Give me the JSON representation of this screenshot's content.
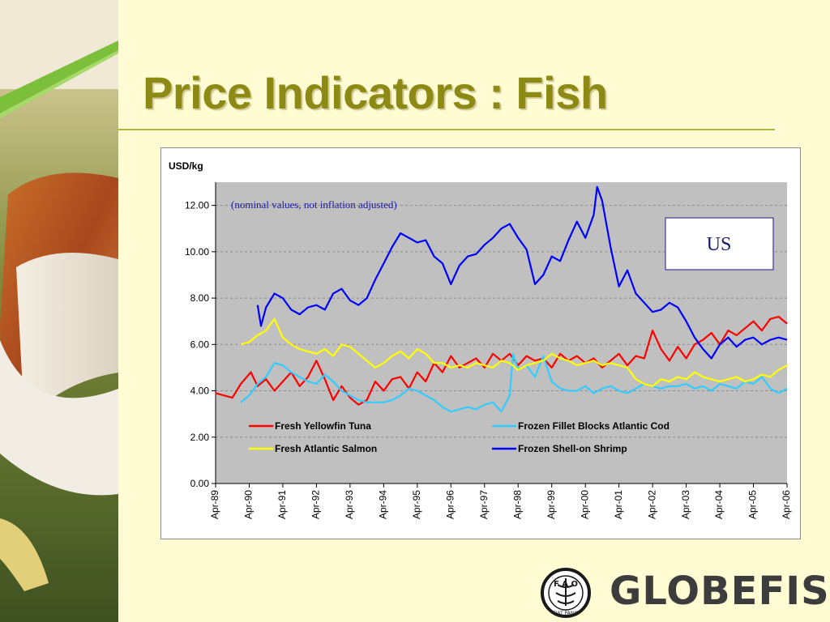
{
  "slide": {
    "title": "Price Indicators : Fish"
  },
  "chart_data": {
    "type": "line",
    "ylabel": "USD/kg",
    "ylim": [
      0,
      13
    ],
    "yticks": [
      0,
      2,
      4,
      6,
      8,
      10,
      12
    ],
    "ytick_labels": [
      "0.00",
      "2.00",
      "4.00",
      "6.00",
      "8.00",
      "10.00",
      "12.00"
    ],
    "x_tick_labels": [
      "Apr-89",
      "Apr-90",
      "Apr-91",
      "Apr-92",
      "Apr-93",
      "Apr-94",
      "Apr-95",
      "Apr-96",
      "Apr-97",
      "Apr-98",
      "Apr-99",
      "Apr-00",
      "Apr-01",
      "Apr-02",
      "Apr-03",
      "Apr-04",
      "Apr-05",
      "Apr-06"
    ],
    "note": "(nominal values, not inflation adjusted)",
    "region_label": "US",
    "grid": true,
    "legend_position": "bottom-inside",
    "series": [
      {
        "name": "Fresh Yellowfin Tuna",
        "color": "#ff0000",
        "x": [
          1989.25,
          1989.75,
          1990.0,
          1990.3,
          1990.5,
          1990.75,
          1991.0,
          1991.25,
          1991.5,
          1991.75,
          1992.0,
          1992.25,
          1992.5,
          1992.75,
          1993.0,
          1993.25,
          1993.5,
          1993.75,
          1994.0,
          1994.25,
          1994.5,
          1994.75,
          1995.0,
          1995.25,
          1995.5,
          1995.75,
          1996.0,
          1996.25,
          1996.5,
          1996.75,
          1997.0,
          1997.25,
          1997.5,
          1997.75,
          1998.0,
          1998.25,
          1998.5,
          1998.75,
          1999.0,
          1999.25,
          1999.5,
          1999.75,
          2000.0,
          2000.25,
          2000.5,
          2000.75,
          2001.0,
          2001.25,
          2001.5,
          2001.75,
          2002.0,
          2002.25,
          2002.5,
          2002.75,
          2003.0,
          2003.25,
          2003.5,
          2003.75,
          2004.0,
          2004.25,
          2004.5,
          2004.75,
          2005.0,
          2005.25,
          2005.5,
          2005.75,
          2006.0,
          2006.25
        ],
        "y": [
          3.9,
          3.7,
          4.3,
          4.8,
          4.2,
          4.5,
          4.0,
          4.4,
          4.8,
          4.2,
          4.6,
          5.3,
          4.5,
          3.6,
          4.2,
          3.7,
          3.4,
          3.6,
          4.4,
          4.0,
          4.5,
          4.6,
          4.1,
          4.8,
          4.4,
          5.2,
          4.8,
          5.5,
          5.0,
          5.2,
          5.4,
          5.0,
          5.6,
          5.3,
          5.6,
          5.1,
          5.5,
          5.3,
          5.4,
          5.0,
          5.6,
          5.3,
          5.5,
          5.2,
          5.4,
          5.0,
          5.3,
          5.6,
          5.1,
          5.5,
          5.4,
          6.6,
          5.8,
          5.3,
          5.9,
          5.4,
          6.0,
          6.2,
          6.5,
          6.0,
          6.6,
          6.4,
          6.7,
          7.0,
          6.6,
          7.1,
          7.2,
          6.9
        ]
      },
      {
        "name": "Frozen Fillet Blocks Atlantic Cod",
        "color": "#33ccff",
        "x": [
          1990.0,
          1990.25,
          1990.5,
          1990.75,
          1991.0,
          1991.25,
          1991.5,
          1991.75,
          1992.0,
          1992.25,
          1992.5,
          1992.75,
          1993.0,
          1993.25,
          1993.5,
          1993.75,
          1994.0,
          1994.25,
          1994.5,
          1994.75,
          1995.0,
          1995.25,
          1995.5,
          1995.75,
          1996.0,
          1996.25,
          1996.5,
          1996.75,
          1997.0,
          1997.25,
          1997.5,
          1997.75,
          1998.0,
          1998.1,
          1998.25,
          1998.5,
          1998.75,
          1999.0,
          1999.25,
          1999.5,
          1999.75,
          2000.0,
          2000.25,
          2000.5,
          2000.75,
          2001.0,
          2001.25,
          2001.5,
          2001.75,
          2002.0,
          2002.25,
          2002.5,
          2002.75,
          2003.0,
          2003.25,
          2003.5,
          2003.75,
          2004.0,
          2004.25,
          2004.5,
          2004.75,
          2005.0,
          2005.25,
          2005.5,
          2005.75,
          2006.0,
          2006.25
        ],
        "y": [
          3.5,
          3.8,
          4.3,
          4.6,
          5.2,
          5.1,
          4.8,
          4.6,
          4.4,
          4.3,
          4.7,
          4.4,
          4.0,
          3.8,
          3.6,
          3.5,
          3.5,
          3.5,
          3.6,
          3.8,
          4.1,
          4.0,
          3.8,
          3.6,
          3.3,
          3.1,
          3.2,
          3.3,
          3.2,
          3.4,
          3.5,
          3.1,
          3.8,
          5.6,
          4.9,
          5.1,
          4.6,
          5.5,
          4.4,
          4.1,
          4.0,
          4.0,
          4.2,
          3.9,
          4.1,
          4.2,
          4.0,
          3.9,
          4.1,
          4.3,
          4.2,
          4.1,
          4.2,
          4.2,
          4.3,
          4.1,
          4.2,
          4.0,
          4.3,
          4.2,
          4.1,
          4.4,
          4.3,
          4.6,
          4.1,
          3.9,
          4.1
        ]
      },
      {
        "name": "Fresh Atlantic Salmon",
        "color": "#ffff00",
        "x": [
          1990.0,
          1990.25,
          1990.5,
          1990.75,
          1991.0,
          1991.25,
          1991.5,
          1991.75,
          1992.0,
          1992.25,
          1992.5,
          1992.75,
          1993.0,
          1993.25,
          1993.5,
          1993.75,
          1994.0,
          1994.25,
          1994.5,
          1994.75,
          1995.0,
          1995.25,
          1995.5,
          1995.75,
          1996.0,
          1996.25,
          1996.5,
          1996.75,
          1997.0,
          1997.25,
          1997.5,
          1997.75,
          1998.0,
          1998.25,
          1998.5,
          1998.75,
          1999.0,
          1999.25,
          1999.5,
          1999.75,
          2000.0,
          2000.25,
          2000.5,
          2000.75,
          2001.0,
          2001.25,
          2001.5,
          2001.75,
          2002.0,
          2002.25,
          2002.5,
          2002.75,
          2003.0,
          2003.25,
          2003.5,
          2003.75,
          2004.0,
          2004.25,
          2004.5,
          2004.75,
          2005.0,
          2005.25,
          2005.5,
          2005.75,
          2006.0,
          2006.25
        ],
        "y": [
          6.0,
          6.1,
          6.4,
          6.6,
          7.1,
          6.3,
          6.0,
          5.8,
          5.7,
          5.6,
          5.8,
          5.5,
          6.0,
          5.9,
          5.6,
          5.3,
          5.0,
          5.2,
          5.5,
          5.7,
          5.4,
          5.8,
          5.6,
          5.2,
          5.2,
          5.0,
          5.1,
          5.0,
          5.2,
          5.1,
          5.0,
          5.3,
          5.2,
          4.9,
          5.1,
          5.2,
          5.3,
          5.6,
          5.4,
          5.3,
          5.1,
          5.2,
          5.3,
          5.1,
          5.2,
          5.1,
          5.0,
          4.5,
          4.3,
          4.2,
          4.5,
          4.4,
          4.6,
          4.5,
          4.8,
          4.6,
          4.5,
          4.4,
          4.5,
          4.6,
          4.4,
          4.5,
          4.7,
          4.6,
          4.9,
          5.1
        ]
      },
      {
        "name": "Frozen Shell-on Shrimp",
        "color": "#0000ff",
        "x": [
          1990.5,
          1990.6,
          1990.75,
          1991.0,
          1991.25,
          1991.5,
          1991.75,
          1992.0,
          1992.25,
          1992.5,
          1992.75,
          1993.0,
          1993.25,
          1993.5,
          1993.75,
          1994.0,
          1994.25,
          1994.5,
          1994.75,
          1995.0,
          1995.25,
          1995.5,
          1995.75,
          1996.0,
          1996.25,
          1996.5,
          1996.75,
          1997.0,
          1997.25,
          1997.5,
          1997.75,
          1998.0,
          1998.25,
          1998.5,
          1998.75,
          1999.0,
          1999.25,
          1999.5,
          1999.75,
          2000.0,
          2000.25,
          2000.5,
          2000.6,
          2000.75,
          2001.0,
          2001.25,
          2001.5,
          2001.75,
          2002.0,
          2002.25,
          2002.5,
          2002.75,
          2003.0,
          2003.25,
          2003.5,
          2003.75,
          2004.0,
          2004.25,
          2004.5,
          2004.75,
          2005.0,
          2005.25,
          2005.5,
          2005.75,
          2006.0,
          2006.25
        ],
        "y": [
          7.7,
          6.8,
          7.6,
          8.2,
          8.0,
          7.5,
          7.3,
          7.6,
          7.7,
          7.5,
          8.2,
          8.4,
          7.9,
          7.7,
          8.0,
          8.8,
          9.5,
          10.2,
          10.8,
          10.6,
          10.4,
          10.5,
          9.8,
          9.5,
          8.6,
          9.4,
          9.8,
          9.9,
          10.3,
          10.6,
          11.0,
          11.2,
          10.6,
          10.1,
          8.6,
          9.0,
          9.8,
          9.6,
          10.5,
          11.3,
          10.6,
          11.6,
          12.8,
          12.2,
          10.2,
          8.5,
          9.2,
          8.2,
          7.8,
          7.4,
          7.5,
          7.8,
          7.6,
          7.0,
          6.3,
          5.8,
          5.4,
          6.0,
          6.3,
          5.9,
          6.2,
          6.3,
          6.0,
          6.2,
          6.3,
          6.2
        ]
      }
    ]
  },
  "logo": {
    "fao_letters": "F A O",
    "fao_motto": "FIAT PANIS",
    "globefish": "GLOBEFISH"
  }
}
